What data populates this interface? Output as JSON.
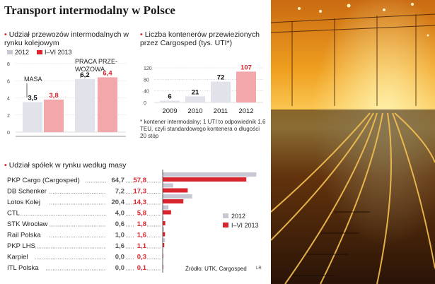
{
  "title": "Transport intermodalny w Polsce",
  "source": "Źródło: UTK, Cargosped",
  "credit": "LR",
  "colors": {
    "red": "#d9262e",
    "grey": "#c8c8d4",
    "red_light": "#f2a8ab",
    "grey_light": "#e2e2ea",
    "accent_bullet": "#d9262e"
  },
  "footnote": "* kontener intermodalny; 1 UTI to odpowiednik 1,6 TEU, czyli standardowego kontenera o długości 20 stóp",
  "chart_data": [
    {
      "type": "bar",
      "title": "Udział przewozów intermodalnych w rynku kolejowym",
      "legend": [
        "2012",
        "I–VI 2013"
      ],
      "categories": [
        "MASA",
        "PRACA PRZE-WOZOWA"
      ],
      "category_labels": [
        "MASA",
        "PRACA PRZE-",
        "WOZOWA"
      ],
      "series": [
        {
          "name": "2012",
          "values": [
            3.5,
            6.2
          ],
          "labels": [
            "3,5",
            "6,2"
          ]
        },
        {
          "name": "I–VI 2013",
          "values": [
            3.8,
            6.4
          ],
          "labels": [
            "3,8",
            "6,4"
          ]
        }
      ],
      "yticks": [
        "0",
        "2",
        "4",
        "6",
        "8"
      ],
      "ylim": [
        0,
        8
      ]
    },
    {
      "type": "bar",
      "title": "Liczba kontenerów przewiezionych przez Cargosped (tys. UTI*)",
      "categories": [
        "2009",
        "2010",
        "2011",
        "2012"
      ],
      "values": [
        6,
        21,
        72,
        107
      ],
      "labels": [
        "6",
        "21",
        "72",
        "107"
      ],
      "highlight_index": 3,
      "yticks": [
        "0",
        "40",
        "80",
        "120"
      ],
      "ylim": [
        0,
        120
      ]
    },
    {
      "type": "bar",
      "orientation": "horizontal",
      "title": "Udział spółek w rynku według masy",
      "legend": [
        "2012",
        "I–VI 2013"
      ],
      "categories": [
        "PKP Cargo (Cargosped)",
        "DB Schenker",
        "Lotos Kolej",
        "CTL",
        "STK Wrocław",
        "Rail Polska",
        "PKP LHS",
        "Karpiel",
        "ITL Polska"
      ],
      "series": [
        {
          "name": "2012",
          "values": [
            64.7,
            7.2,
            20.4,
            4.0,
            0.6,
            1.0,
            1.6,
            0.0,
            0.0
          ],
          "labels": [
            "64,7",
            "7,2",
            "20,4",
            "4,0",
            "0,6",
            "1,0",
            "1,6",
            "0,0",
            "0,0"
          ]
        },
        {
          "name": "I–VI 2013",
          "values": [
            57.8,
            17.3,
            14.3,
            5.8,
            1.8,
            1.6,
            1.1,
            0.3,
            0.1
          ],
          "labels": [
            "57,8",
            "17,3",
            "14,3",
            "5,8",
            "1,8",
            "1,6",
            "1,1",
            "0,3",
            "0,1"
          ]
        }
      ],
      "xlim": [
        0,
        66
      ]
    }
  ]
}
